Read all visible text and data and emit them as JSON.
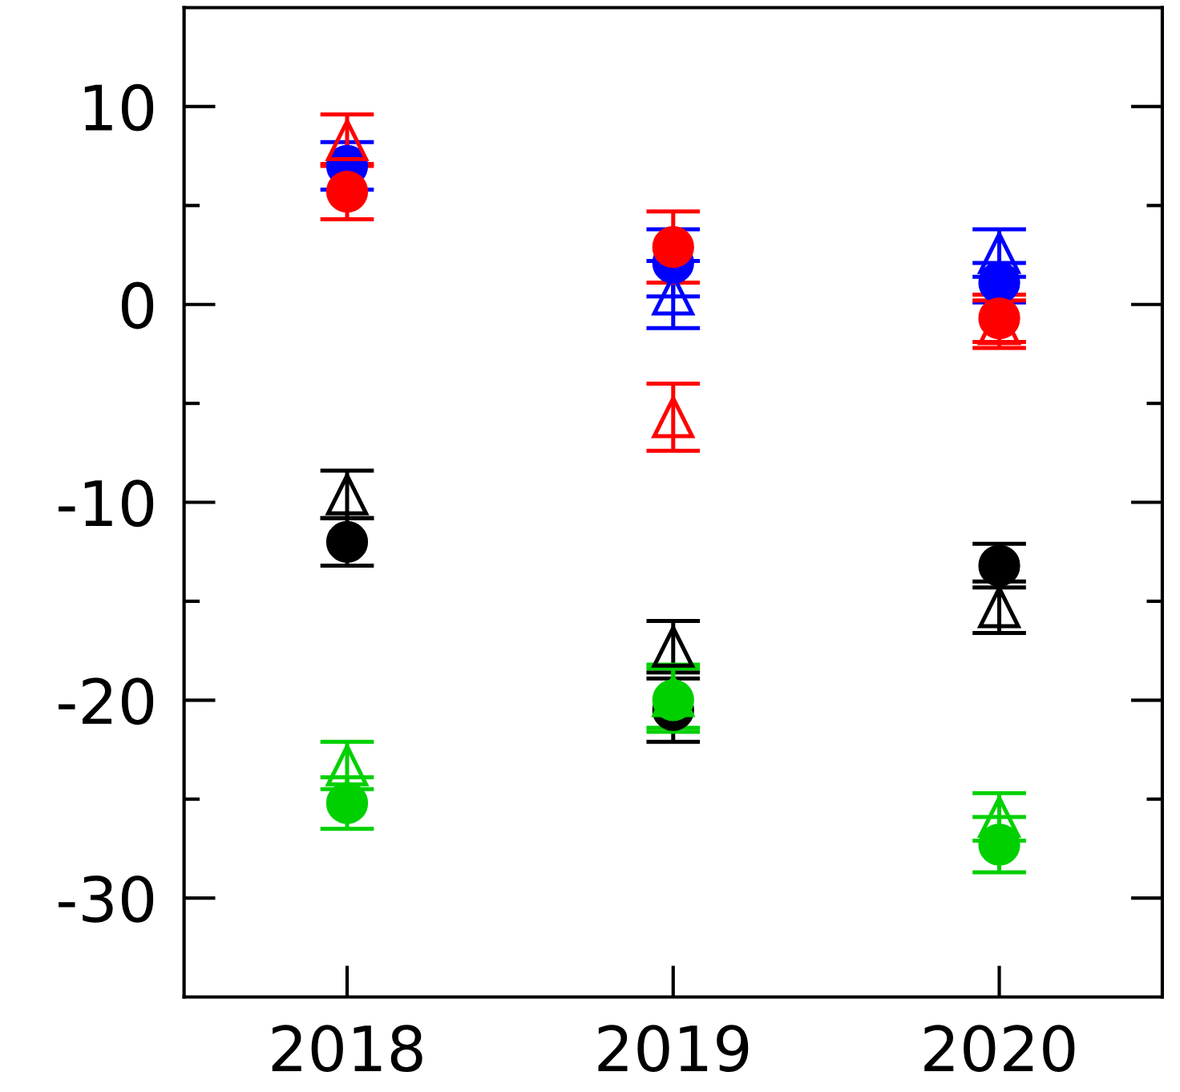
{
  "chart_data": {
    "type": "scatter",
    "categories": [
      "2018",
      "2019",
      "2020"
    ],
    "ylim": [
      -35,
      15
    ],
    "yticks": [
      10,
      {
        "value": 5,
        "label": null
      },
      0,
      {
        "value": -5,
        "label": null
      },
      -10,
      {
        "value": -15,
        "label": null
      },
      -20,
      {
        "value": -25,
        "label": null
      },
      -30
    ],
    "grid": false,
    "legend": false,
    "series": [
      {
        "color": "#000000",
        "marker": "circle",
        "values": [
          -12.0,
          -20.5,
          -13.2
        ],
        "errors": [
          1.2,
          1.6,
          1.1
        ]
      },
      {
        "color": "#000000",
        "marker": "triangle",
        "values": [
          -9.6,
          -17.3,
          -15.3
        ],
        "errors": [
          1.2,
          1.3,
          1.3
        ]
      },
      {
        "color": "#00d000",
        "marker": "circle",
        "values": [
          -25.2,
          -20.0,
          -27.3
        ],
        "errors": [
          1.3,
          1.6,
          1.4
        ]
      },
      {
        "color": "#00d000",
        "marker": "triangle",
        "values": [
          -23.3,
          -19.8,
          -25.9
        ],
        "errors": [
          1.2,
          1.6,
          1.2
        ]
      },
      {
        "color": "#0000ff",
        "marker": "circle",
        "values": [
          7.0,
          2.1,
          1.1
        ],
        "errors": [
          1.2,
          1.7,
          1.0
        ]
      },
      {
        "color": "#0000ff",
        "marker": "triangle",
        "values": [
          null,
          0.5,
          2.6
        ],
        "errors": [
          null,
          1.7,
          1.2
        ]
      },
      {
        "color": "#ff0000",
        "marker": "circle",
        "values": [
          5.7,
          2.9,
          -0.7
        ],
        "errors": [
          1.4,
          1.8,
          1.2
        ]
      },
      {
        "color": "#ff0000",
        "marker": "triangle",
        "values": [
          8.3,
          -5.7,
          -1.0
        ],
        "errors": [
          1.3,
          1.7,
          1.2
        ]
      }
    ]
  }
}
